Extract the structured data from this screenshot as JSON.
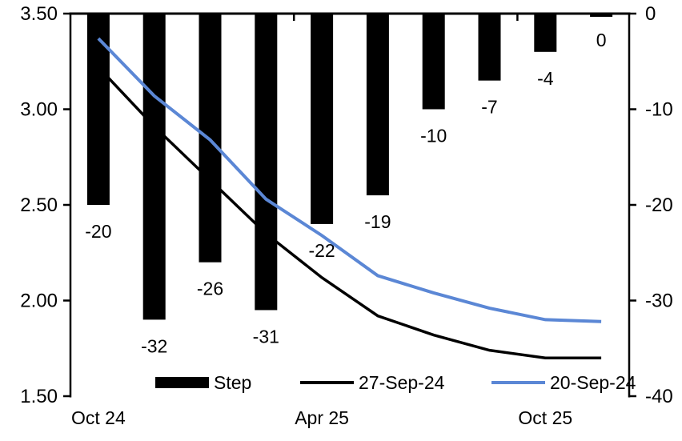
{
  "chart_data": {
    "type": "bar",
    "subtype": "dual-axis bar + line combo",
    "title": "",
    "slots": 10,
    "x_tick_labels": [
      {
        "label": "Oct 24",
        "slot": 0
      },
      {
        "label": "Apr 25",
        "slot": 4
      },
      {
        "label": "Oct 25",
        "slot": 8
      }
    ],
    "left_axis": {
      "min": 1.5,
      "max": 3.5,
      "ticks": [
        "3.50",
        "3.00",
        "2.50",
        "2.00",
        "1.50"
      ]
    },
    "right_axis": {
      "min": -40,
      "max": 0,
      "ticks": [
        "0",
        "-10",
        "-20",
        "-30",
        "-40"
      ]
    },
    "series": [
      {
        "name": "Step",
        "type": "bar",
        "axis": "right",
        "color": "#000000",
        "values": [
          -20,
          -32,
          -26,
          -31,
          -22,
          -19,
          -10,
          -7,
          -4,
          0
        ],
        "data_labels": [
          "-20",
          "-32",
          "-26",
          "-31",
          "-22",
          "-19",
          "-10",
          "-7",
          "-4",
          "0"
        ]
      },
      {
        "name": "27-Sep-24",
        "type": "line",
        "axis": "left",
        "color": "#000000",
        "values": [
          3.22,
          2.91,
          2.63,
          2.35,
          2.12,
          1.92,
          1.82,
          1.74,
          1.7,
          1.7
        ]
      },
      {
        "name": "20-Sep-24",
        "type": "line",
        "axis": "left",
        "color": "#5B87D5",
        "values": [
          3.37,
          3.07,
          2.84,
          2.53,
          2.34,
          2.13,
          2.04,
          1.96,
          1.9,
          1.89
        ]
      }
    ],
    "legend": {
      "position": "bottom-inside",
      "items": [
        "Step",
        "27-Sep-24",
        "20-Sep-24"
      ]
    },
    "grid": "off"
  }
}
